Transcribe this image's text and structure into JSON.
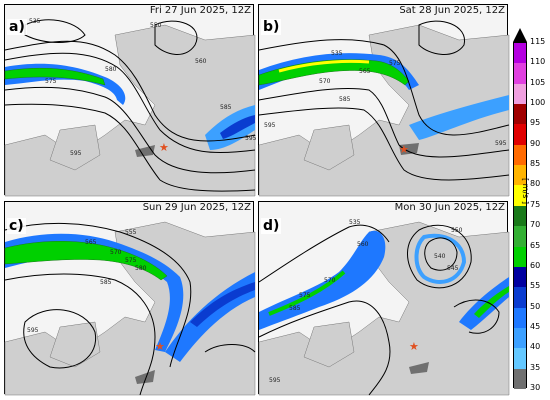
{
  "panels": [
    {
      "label": "a)",
      "title": "Fri 27 Jun 2025, 12Z",
      "contour_labels": [
        "535",
        "550",
        "560",
        "575",
        "580",
        "585",
        "595",
        "595"
      ]
    },
    {
      "label": "b)",
      "title": "Sat 28 Jun 2025, 12Z",
      "contour_labels": [
        "535",
        "565",
        "570",
        "575",
        "585",
        "595",
        "595"
      ]
    },
    {
      "label": "c)",
      "title": "Sun 29 Jun 2025, 12Z",
      "contour_labels": [
        "555",
        "565",
        "570",
        "575",
        "580",
        "585",
        "595"
      ]
    },
    {
      "label": "d)",
      "title": "Mon 30 Jun 2025, 12Z",
      "contour_labels": [
        "535",
        "540",
        "545",
        "550",
        "560",
        "570",
        "575",
        "585",
        "595"
      ]
    }
  ],
  "colorbar": {
    "unit": "[ m/s ]",
    "ticks": [
      "115",
      "110",
      "105",
      "100",
      "95",
      "90",
      "85",
      "80",
      "75",
      "70",
      "65",
      "60",
      "55",
      "50",
      "45",
      "40",
      "35",
      "30"
    ],
    "colors": [
      "#b400e0",
      "#e040e0",
      "#f0a0e0",
      "#a00000",
      "#e00000",
      "#ff6a00",
      "#ffb400",
      "#ffff00",
      "#1a7a1a",
      "#33b033",
      "#00d000",
      "#0000a0",
      "#0a3cd0",
      "#1e78ff",
      "#3ca0ff",
      "#64c8ff",
      "#707070"
    ]
  },
  "marker": {
    "symbol": "★",
    "color": "#e05020"
  }
}
